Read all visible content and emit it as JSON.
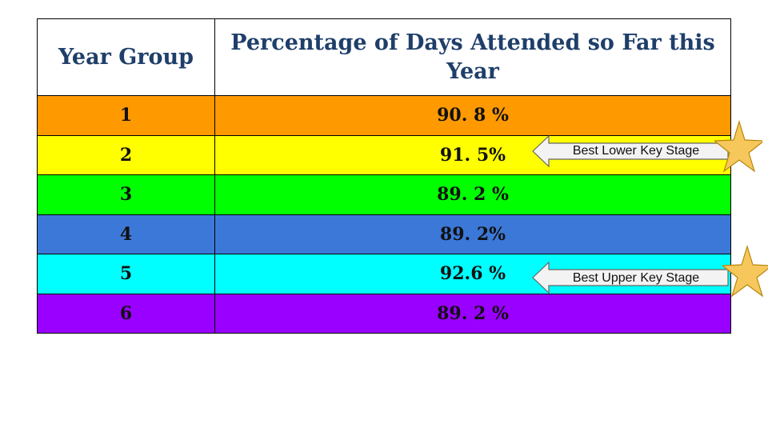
{
  "table": {
    "headers": [
      "Year Group",
      "Percentage of Days Attended so Far this Year"
    ],
    "rows": [
      {
        "year": "1",
        "percent": "90. 8 %",
        "color": "#ff9900"
      },
      {
        "year": "2",
        "percent": "91. 5%",
        "color": "#ffff00"
      },
      {
        "year": "3",
        "percent": "89. 2 %",
        "color": "#00ff00"
      },
      {
        "year": "4",
        "percent": "89. 2%",
        "color": "#3c78d8"
      },
      {
        "year": "5",
        "percent": "92.6  %",
        "color": "#00ffff"
      },
      {
        "year": "6",
        "percent": "89. 2 %",
        "color": "#9900ff"
      }
    ]
  },
  "callouts": {
    "lower": {
      "label": "Best Lower Key Stage",
      "icon": "star-icon"
    },
    "upper": {
      "label": "Best Upper Key Stage",
      "icon": "star-icon"
    }
  },
  "colors": {
    "header_text": "#1f3f6a",
    "arrow_fill": "#f3f3f3",
    "star_fill": "#f6c85c"
  }
}
